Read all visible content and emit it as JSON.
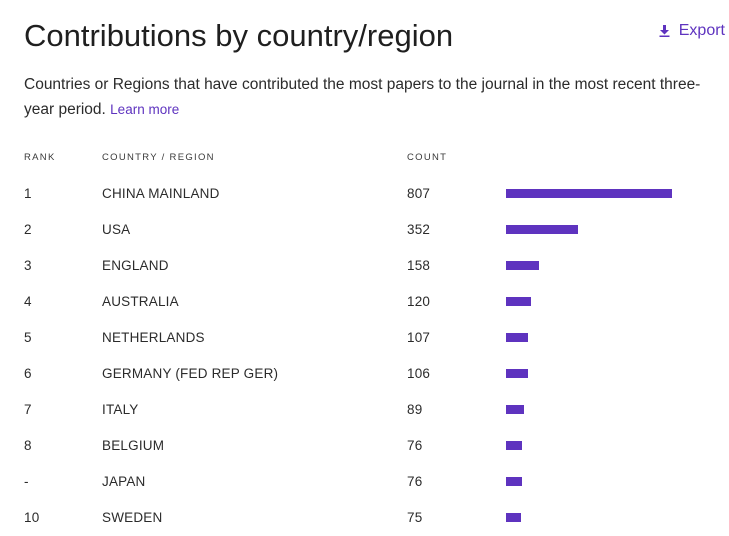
{
  "header": {
    "title": "Contributions by country/region",
    "export_label": "Export"
  },
  "description": {
    "text": "Countries or Regions that have contributed the most papers to the journal in the most recent three-year period.",
    "link_label": "Learn more"
  },
  "table": {
    "columns": {
      "rank": "RANK",
      "country": "COUNTRY / REGION",
      "count": "COUNT"
    },
    "max_count": 807,
    "rows": [
      {
        "rank": "1",
        "country": "CHINA MAINLAND",
        "count": "807",
        "value": 807
      },
      {
        "rank": "2",
        "country": "USA",
        "count": "352",
        "value": 352
      },
      {
        "rank": "3",
        "country": "ENGLAND",
        "count": "158",
        "value": 158
      },
      {
        "rank": "4",
        "country": "AUSTRALIA",
        "count": "120",
        "value": 120
      },
      {
        "rank": "5",
        "country": "NETHERLANDS",
        "count": "107",
        "value": 107
      },
      {
        "rank": "6",
        "country": "GERMANY (FED REP GER)",
        "count": "106",
        "value": 106
      },
      {
        "rank": "7",
        "country": "ITALY",
        "count": "89",
        "value": 89
      },
      {
        "rank": "8",
        "country": "BELGIUM",
        "count": "76",
        "value": 76
      },
      {
        "rank": "-",
        "country": "JAPAN",
        "count": "76",
        "value": 76
      },
      {
        "rank": "10",
        "country": "SWEDEN",
        "count": "75",
        "value": 75
      }
    ]
  },
  "colors": {
    "accent": "#5e33bf",
    "bar": "#5e33bf",
    "text": "#2b2b2b"
  },
  "icons": {
    "export": "download-icon"
  }
}
